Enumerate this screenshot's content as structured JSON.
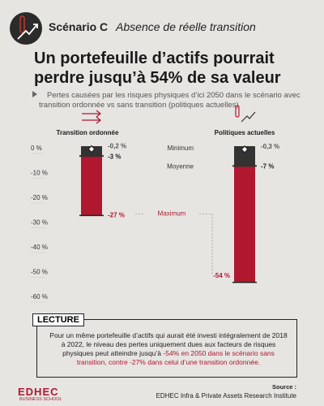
{
  "header": {
    "scenario": "Scénario C",
    "scenario_subtitle": "Absence de réelle transition"
  },
  "chart_data": {
    "type": "range-bar",
    "title": "Un portefeuille d’actifs pourrait perdre jusqu’à 54% de sa valeur",
    "subtitle": "Pertes causées par les risques physiques d’ici 2050 dans le scénario avec transition ordonnée vs sans transition (politiques actuelles)",
    "categories": [
      "Transition ordonnée",
      "Politiques actuelles"
    ],
    "ylim": [
      -60,
      0
    ],
    "yticks": [
      {
        "value": 0,
        "label": "0 %"
      },
      {
        "value": -10,
        "label": "-10 %"
      },
      {
        "value": -20,
        "label": "-20 %"
      },
      {
        "value": -30,
        "label": "-30 %"
      },
      {
        "value": -40,
        "label": "-40 %"
      },
      {
        "value": -50,
        "label": "-50 %"
      },
      {
        "value": -60,
        "label": "-60 %"
      }
    ],
    "series": [
      {
        "name": "Minimum",
        "color": "#ffffff",
        "values": [
          -0.2,
          -0.3
        ],
        "value_labels": [
          "-0,2 %",
          "-0,3 %"
        ]
      },
      {
        "name": "Moyenne",
        "color": "#333333",
        "values": [
          -3,
          -7
        ],
        "value_labels": [
          "-3 %",
          "-7 %"
        ]
      },
      {
        "name": "Maximum",
        "color": "#b0182f",
        "values": [
          -27,
          -54
        ],
        "value_labels": [
          "-27 %",
          "-54 %"
        ]
      }
    ]
  },
  "lecture": {
    "label": "LECTURE",
    "text": "Pour un même portefeuille d’actifs qui aurait été investi intégralement de 2018 à 2022, le niveau des pertes uniquement dues aux facteurs de risques physiques peut atteindre jusqu’à",
    "highlight": "-54% en 2050 dans le scénario sans transition, contre -27% dans celui d’une transition ordonnée."
  },
  "footer": {
    "logo": "EDHEC",
    "logo_sub": "BUSINESS SCHOOL",
    "source_label": "Source :",
    "source": "EDHEC Infra & Private Assets Research Institute"
  }
}
